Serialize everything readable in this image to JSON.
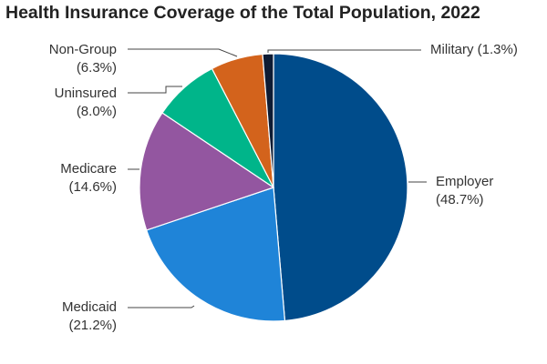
{
  "chart_data": {
    "type": "pie",
    "title": "Health Insurance Coverage of the Total Population, 2022",
    "start_angle_deg": 0,
    "direction": "clockwise",
    "slices": [
      {
        "label": "Employer",
        "value": 48.7,
        "value_label": "(48.7%)",
        "color": "#004c8b"
      },
      {
        "label": "Medicaid",
        "value": 21.2,
        "value_label": "(21.2%)",
        "color": "#1f84d8"
      },
      {
        "label": "Medicare",
        "value": 14.6,
        "value_label": "(14.6%)",
        "color": "#9356a0"
      },
      {
        "label": "Uninsured",
        "value": 8.0,
        "value_label": "(8.0%)",
        "color": "#00b58a"
      },
      {
        "label": "Non-Group",
        "value": 6.3,
        "value_label": "(6.3%)",
        "color": "#d3631c"
      },
      {
        "label": "Military",
        "value": 1.3,
        "value_label": "(1.3%)",
        "color": "#0d1b33"
      }
    ]
  }
}
